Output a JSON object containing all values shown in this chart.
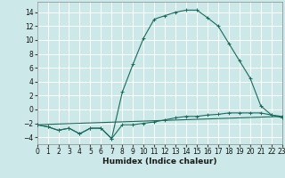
{
  "xlabel": "Humidex (Indice chaleur)",
  "background_color": "#cce8e8",
  "grid_color": "#ffffff",
  "line_color": "#1a6b5a",
  "series1_x": [
    0,
    1,
    2,
    3,
    4,
    5,
    6,
    7,
    8,
    9,
    10,
    11,
    12,
    13,
    14,
    15,
    16,
    17,
    18,
    19,
    20,
    21,
    22,
    23
  ],
  "series1_y": [
    -2.2,
    -2.5,
    -3.0,
    -2.7,
    -3.5,
    -2.7,
    -2.7,
    -4.2,
    -2.2,
    -2.2,
    -2.0,
    -1.8,
    -1.5,
    -1.2,
    -1.0,
    -1.0,
    -0.8,
    -0.7,
    -0.5,
    -0.5,
    -0.5,
    -0.5,
    -0.8,
    -1.0
  ],
  "series2_x": [
    0,
    1,
    2,
    3,
    4,
    5,
    6,
    7,
    8,
    9,
    10,
    11,
    12,
    13,
    14,
    15,
    16,
    17,
    18,
    19,
    20,
    21,
    22,
    23
  ],
  "series2_y": [
    -2.2,
    -2.5,
    -3.0,
    -2.7,
    -3.5,
    -2.7,
    -2.7,
    -4.2,
    2.5,
    6.5,
    10.3,
    13.0,
    13.5,
    14.0,
    14.3,
    14.3,
    13.2,
    12.0,
    9.5,
    7.0,
    4.5,
    0.5,
    -0.8,
    -1.2
  ],
  "series3_x": [
    0,
    23
  ],
  "series3_y": [
    -2.2,
    -1.0
  ],
  "xlim": [
    0,
    23
  ],
  "ylim": [
    -5.0,
    15.5
  ],
  "yticks": [
    -4,
    -2,
    0,
    2,
    4,
    6,
    8,
    10,
    12,
    14
  ],
  "xticks": [
    0,
    1,
    2,
    3,
    4,
    5,
    6,
    7,
    8,
    9,
    10,
    11,
    12,
    13,
    14,
    15,
    16,
    17,
    18,
    19,
    20,
    21,
    22,
    23
  ],
  "xlabel_fontsize": 6.5,
  "tick_fontsize": 5.5,
  "linewidth": 0.8,
  "markersize": 2.5
}
